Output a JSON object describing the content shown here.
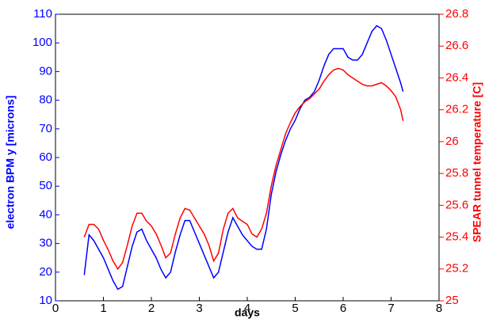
{
  "chart_data": {
    "type": "line",
    "xlabel": "days",
    "ylabel": "electron BPM  y [microns]",
    "y2label": "SPEAR tunnel temperature [C]",
    "x": [
      0.6,
      0.7,
      0.8,
      0.9,
      1.0,
      1.1,
      1.2,
      1.3,
      1.4,
      1.5,
      1.6,
      1.7,
      1.8,
      1.9,
      2.0,
      2.1,
      2.2,
      2.3,
      2.4,
      2.5,
      2.6,
      2.7,
      2.8,
      2.9,
      3.0,
      3.1,
      3.2,
      3.3,
      3.4,
      3.5,
      3.6,
      3.7,
      3.8,
      3.9,
      4.0,
      4.1,
      4.2,
      4.3,
      4.4,
      4.5,
      4.6,
      4.7,
      4.8,
      4.9,
      5.0,
      5.1,
      5.2,
      5.3,
      5.4,
      5.5,
      5.6,
      5.7,
      5.8,
      5.9,
      6.0,
      6.1,
      6.2,
      6.3,
      6.4,
      6.5,
      6.6,
      6.7,
      6.8,
      6.9,
      7.0,
      7.1,
      7.2,
      7.25
    ],
    "series": [
      {
        "color": "#0000ff",
        "axis": "y",
        "values": [
          19,
          33,
          31,
          28,
          25,
          21,
          17,
          14,
          15,
          22,
          29,
          34,
          35,
          31,
          28,
          25,
          21,
          18,
          20,
          27,
          33,
          38,
          38,
          34,
          30,
          26,
          22,
          18,
          20,
          27,
          34,
          39,
          36,
          33,
          31,
          29,
          28,
          28,
          35,
          47,
          55,
          61,
          66,
          70,
          73,
          77,
          80,
          81,
          83,
          87,
          92,
          96,
          98,
          98,
          98,
          95,
          94,
          94,
          96,
          100,
          104,
          106,
          105,
          101,
          96,
          91,
          86,
          83
        ]
      },
      {
        "color": "#ff0000",
        "axis": "y2",
        "values": [
          25.4,
          25.48,
          25.48,
          25.45,
          25.38,
          25.32,
          25.25,
          25.2,
          25.24,
          25.35,
          25.47,
          25.55,
          25.55,
          25.5,
          25.47,
          25.42,
          25.35,
          25.27,
          25.3,
          25.42,
          25.52,
          25.58,
          25.57,
          25.52,
          25.47,
          25.42,
          25.35,
          25.25,
          25.3,
          25.45,
          25.55,
          25.58,
          25.52,
          25.5,
          25.48,
          25.42,
          25.4,
          25.45,
          25.55,
          25.72,
          25.85,
          25.95,
          26.05,
          26.12,
          26.18,
          26.22,
          26.25,
          26.27,
          26.3,
          26.33,
          26.38,
          26.42,
          26.45,
          26.46,
          26.45,
          26.42,
          26.4,
          26.38,
          26.36,
          26.35,
          26.35,
          26.36,
          26.37,
          26.35,
          26.32,
          26.28,
          26.2,
          26.13
        ]
      }
    ],
    "xlim": [
      0,
      8
    ],
    "xticks": [
      0,
      1,
      2,
      3,
      4,
      5,
      6,
      7,
      8
    ],
    "ylim": [
      10,
      110
    ],
    "yticks": [
      10,
      20,
      30,
      40,
      50,
      60,
      70,
      80,
      90,
      100,
      110
    ],
    "y2lim": [
      25,
      26.8
    ],
    "y2ticks": [
      25,
      25.2,
      25.4,
      25.6,
      25.8,
      26,
      26.2,
      26.4,
      26.6,
      26.8
    ]
  }
}
